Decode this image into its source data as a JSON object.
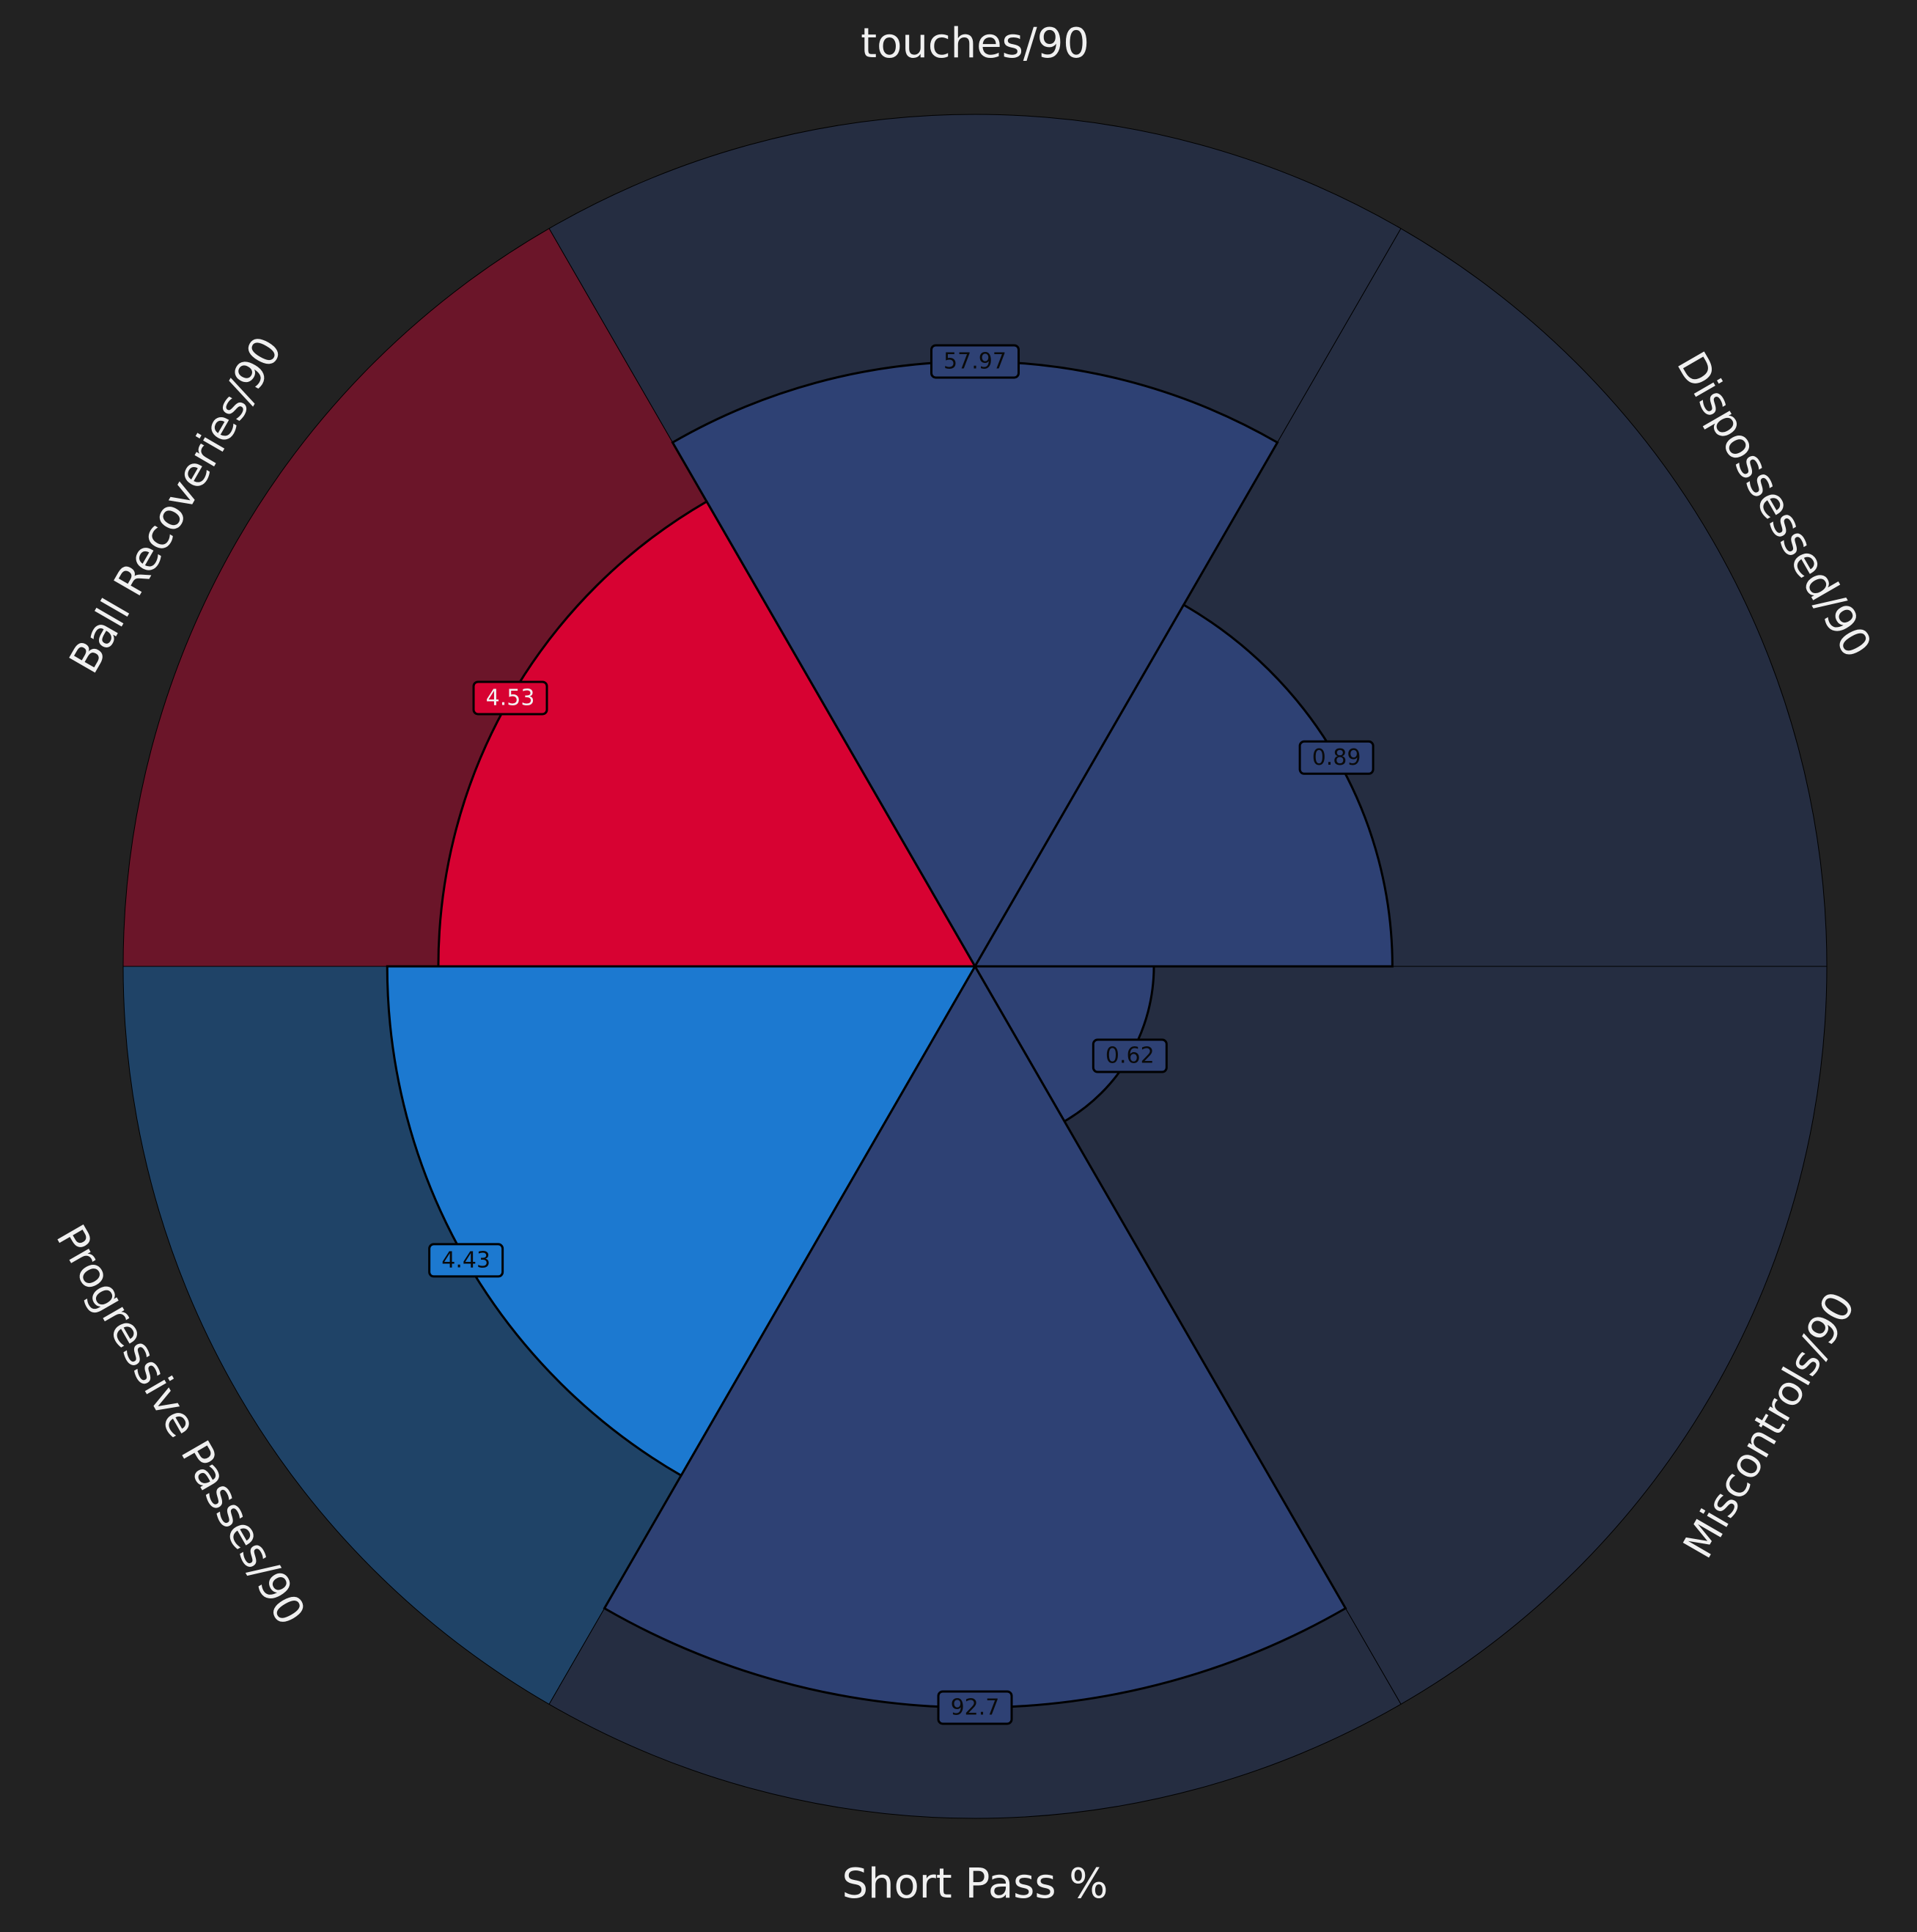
{
  "chart_data": {
    "type": "pizza",
    "title": "",
    "parameters": [
      {
        "label": "touches/90",
        "value": "57.97",
        "percentile": 0.71,
        "group": "blue"
      },
      {
        "label": "Dispossessed/90",
        "value": "0.89",
        "percentile": 0.49,
        "group": "blue"
      },
      {
        "label": "Miscontrols/90",
        "value": "0.62",
        "percentile": 0.21,
        "group": "blue"
      },
      {
        "label": "Short Pass %",
        "value": "92.7",
        "percentile": 0.87,
        "group": "blue"
      },
      {
        "label": "Progressive Passes/90",
        "value": "4.43",
        "percentile": 0.69,
        "group": "light-blue"
      },
      {
        "label": "Ball Recoveries/90",
        "value": "4.53",
        "percentile": 0.63,
        "group": "red"
      }
    ],
    "range": [
      0,
      1
    ],
    "grid": false,
    "colors": {
      "background": "#222222",
      "blue": {
        "slice": "#2e4174",
        "back": "#252d41",
        "label_bg": "#2e4174",
        "label_text": "#0a0a0a"
      },
      "light-blue": {
        "slice": "#1c79d0",
        "back": "#1f4367",
        "label_bg": "#1c79d0",
        "label_text": "#0a0a0a"
      },
      "red": {
        "slice": "#d70232",
        "back": "#6b1529",
        "label_bg": "#d70232",
        "label_text": "#f2f2f2"
      },
      "edge": "#000000",
      "param_text": "#f0f0f0"
    }
  }
}
